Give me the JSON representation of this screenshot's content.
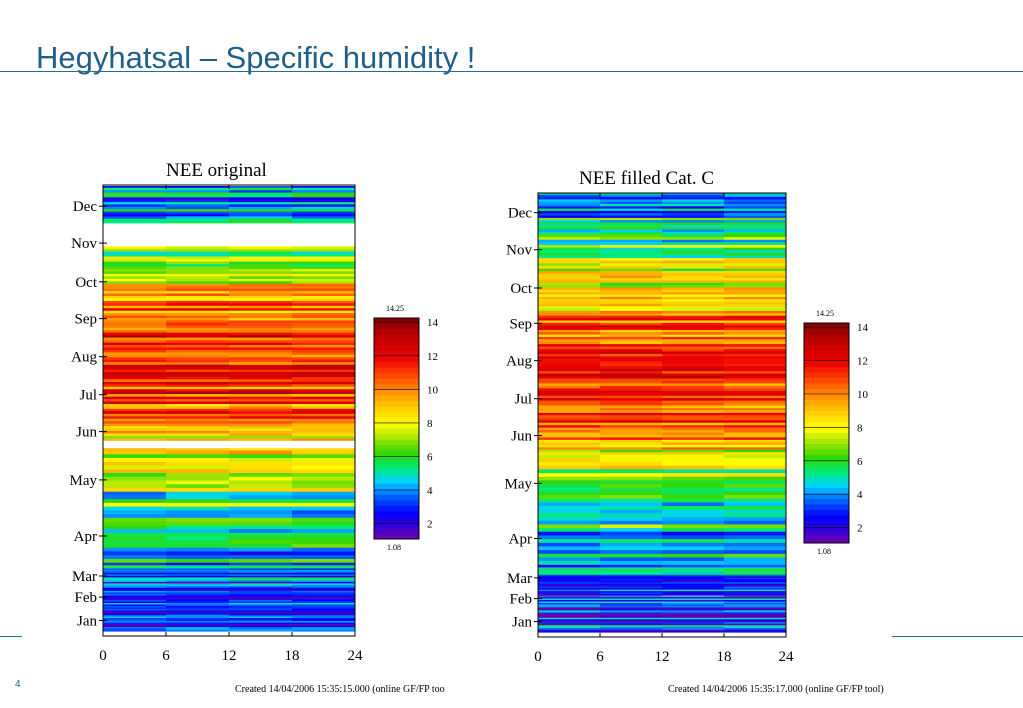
{
  "slide": {
    "title": "Hegyhatsal – Specific humidity !",
    "left_footer": "Created 14/04/2006 15:35:15.000 (online GF/FP too",
    "right_footer": "Created 14/04/2006 15:35:17.000 (online GF/FP tool)",
    "footer_mark": "4"
  },
  "chart_data": [
    {
      "type": "heatmap",
      "title": "NEE original",
      "x_ticks": [
        0,
        6,
        12,
        18,
        24
      ],
      "xlim": [
        0,
        24
      ],
      "month_labels": [
        "Jan",
        "Feb",
        "Mar",
        "Apr",
        "May",
        "Jun",
        "Jul",
        "Aug",
        "Sep",
        "Oct",
        "Nov",
        "Dec"
      ],
      "colorbar": {
        "min": 1.08,
        "max": 14.25,
        "ticks": [
          2,
          4,
          6,
          8,
          10,
          12,
          14
        ],
        "min_label": "1.08",
        "max_label": "14.25"
      },
      "monthly_mean": [
        3.0,
        2.9,
        3.5,
        5.0,
        6.8,
        9.8,
        11.2,
        11.5,
        10.3,
        8.5,
        6.0,
        4.0
      ],
      "gaps_days": [
        [
          153,
          157
        ],
        [
          317,
          333
        ]
      ]
    },
    {
      "type": "heatmap",
      "title": "NEE filled Cat. C",
      "x_ticks": [
        0,
        6,
        12,
        18,
        24
      ],
      "xlim": [
        0,
        24
      ],
      "month_labels": [
        "Jan",
        "Feb",
        "Mar",
        "Apr",
        "May",
        "Jun",
        "Jul",
        "Aug",
        "Sep",
        "Oct",
        "Nov",
        "Dec"
      ],
      "colorbar": {
        "min": 1.08,
        "max": 14.25,
        "ticks": [
          2,
          4,
          6,
          8,
          10,
          12,
          14
        ],
        "min_label": "1.08",
        "max_label": "14.25"
      },
      "monthly_mean": [
        3.0,
        2.9,
        3.5,
        5.0,
        6.8,
        10.5,
        11.2,
        11.5,
        10.3,
        8.5,
        6.2,
        4.0
      ],
      "gaps_days": []
    }
  ]
}
